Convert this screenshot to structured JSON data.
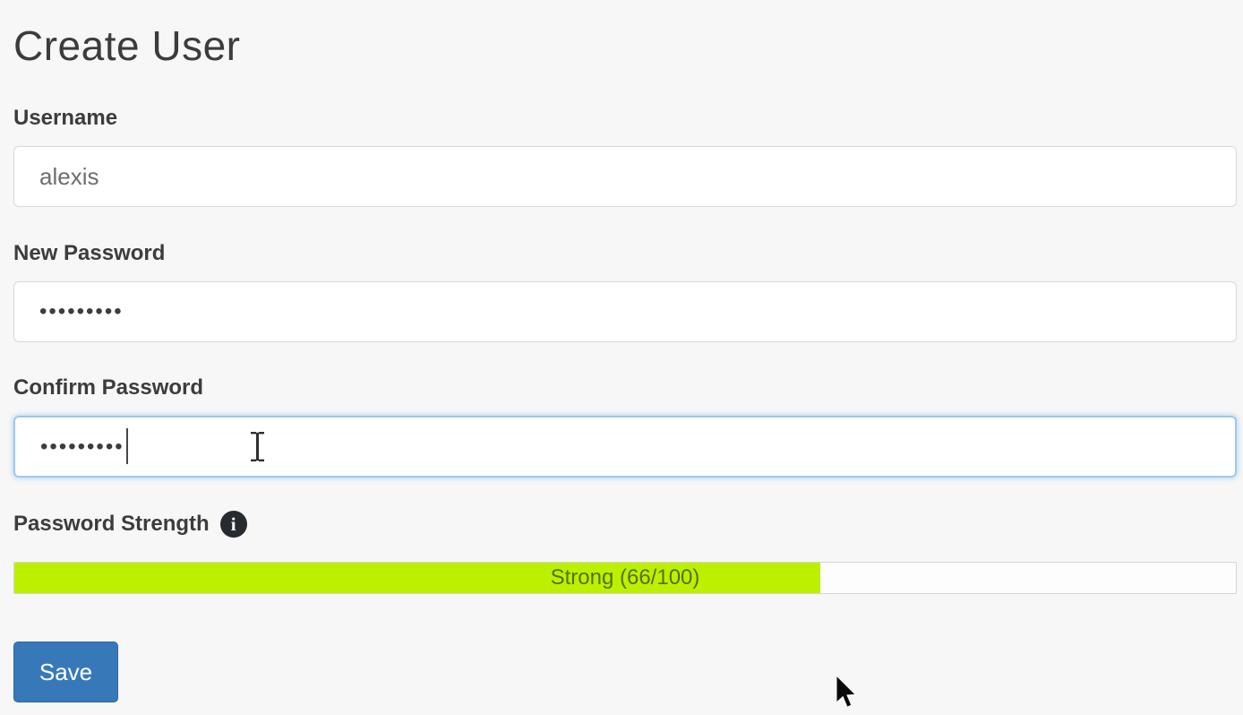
{
  "page": {
    "title": "Create User",
    "background_color": "#f7f7f7"
  },
  "form": {
    "username": {
      "label": "Username",
      "value": "alexis"
    },
    "new_password": {
      "label": "New Password",
      "masked_value": "•••••••••"
    },
    "confirm_password": {
      "label": "Confirm Password",
      "masked_value": "•••••••••",
      "focused": true
    },
    "password_strength": {
      "label": "Password Strength",
      "info_icon": "info-circle-icon",
      "info_icon_glyph": "i",
      "strength_text": "Strong (66/100)",
      "strength_value": 66,
      "strength_max": 100,
      "bar_fill_color": "#bdf000",
      "bar_text_color": "#55700b"
    }
  },
  "buttons": {
    "save_label": "Save"
  },
  "accent_colors": {
    "button_blue": "#3779b8",
    "focus_border_blue": "#9dc8ee"
  }
}
